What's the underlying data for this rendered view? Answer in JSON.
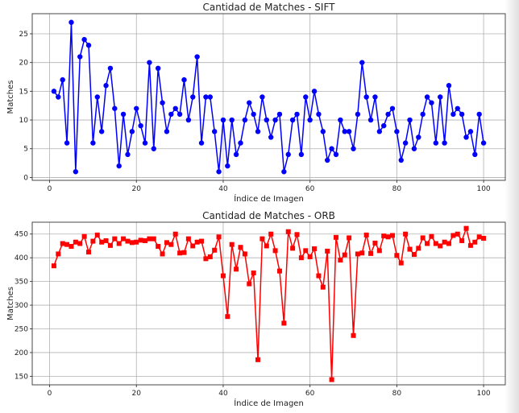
{
  "chart_data": [
    {
      "type": "line",
      "title": "Cantidad de Matches - SIFT",
      "xlabel": "Índice de Imagen",
      "ylabel": "Matches",
      "xlim": [
        -4,
        105
      ],
      "ylim": [
        -0.5,
        28.5
      ],
      "xticks": [
        0,
        20,
        40,
        60,
        80,
        100
      ],
      "yticks": [
        0,
        5,
        10,
        15,
        20,
        25
      ],
      "grid": true,
      "series": [
        {
          "color": "#0000ff",
          "marker": "circle",
          "x": [
            1,
            2,
            3,
            4,
            5,
            6,
            7,
            8,
            9,
            10,
            11,
            12,
            13,
            14,
            15,
            16,
            17,
            18,
            19,
            20,
            21,
            22,
            23,
            24,
            25,
            26,
            27,
            28,
            29,
            30,
            31,
            32,
            33,
            34,
            35,
            36,
            37,
            38,
            39,
            40,
            41,
            42,
            43,
            44,
            45,
            46,
            47,
            48,
            49,
            50,
            51,
            52,
            53,
            54,
            55,
            56,
            57,
            58,
            59,
            60,
            61,
            62,
            63,
            64,
            65,
            66,
            67,
            68,
            69,
            70,
            71,
            72,
            73,
            74,
            75,
            76,
            77,
            78,
            79,
            80,
            81,
            82,
            83,
            84,
            85,
            86,
            87,
            88,
            89,
            90,
            91,
            92,
            93,
            94,
            95,
            96,
            97,
            98,
            99,
            100
          ],
          "values": [
            15,
            14,
            17,
            6,
            27,
            1,
            21,
            24,
            23,
            6,
            14,
            8,
            16,
            19,
            12,
            2,
            11,
            4,
            8,
            12,
            9,
            6,
            20,
            5,
            19,
            13,
            8,
            11,
            12,
            11,
            17,
            10,
            14,
            21,
            6,
            14,
            14,
            8,
            1,
            10,
            2,
            10,
            4,
            6,
            10,
            13,
            11,
            8,
            14,
            10,
            7,
            10,
            11,
            1,
            4,
            10,
            11,
            4,
            14,
            10,
            15,
            11,
            8,
            3,
            5,
            4,
            10,
            8,
            8,
            5,
            11,
            20,
            14,
            10,
            14,
            8,
            9,
            11,
            12,
            8,
            3,
            6,
            10,
            5,
            7,
            11,
            14,
            13,
            6,
            14,
            6,
            16,
            11,
            12,
            11,
            7,
            8,
            4,
            11,
            6
          ]
        }
      ]
    },
    {
      "type": "line",
      "title": "Cantidad de Matches - ORB",
      "xlabel": "Índice de Imagen",
      "ylabel": "Matches",
      "xlim": [
        -4,
        105
      ],
      "ylim": [
        132,
        475
      ],
      "xticks": [
        0,
        20,
        40,
        60,
        80,
        100
      ],
      "yticks": [
        150,
        200,
        250,
        300,
        350,
        400,
        450
      ],
      "grid": true,
      "series": [
        {
          "color": "#ff0000",
          "marker": "square",
          "x": [
            1,
            2,
            3,
            4,
            5,
            6,
            7,
            8,
            9,
            10,
            11,
            12,
            13,
            14,
            15,
            16,
            17,
            18,
            19,
            20,
            21,
            22,
            23,
            24,
            25,
            26,
            27,
            28,
            29,
            30,
            31,
            32,
            33,
            34,
            35,
            36,
            37,
            38,
            39,
            40,
            41,
            42,
            43,
            44,
            45,
            46,
            47,
            48,
            49,
            50,
            51,
            52,
            53,
            54,
            55,
            56,
            57,
            58,
            59,
            60,
            61,
            62,
            63,
            64,
            65,
            66,
            67,
            68,
            69,
            70,
            71,
            72,
            73,
            74,
            75,
            76,
            77,
            78,
            79,
            80,
            81,
            82,
            83,
            84,
            85,
            86,
            87,
            88,
            89,
            90,
            91,
            92,
            93,
            94,
            95,
            96,
            97,
            98,
            99,
            100
          ],
          "values": [
            383,
            408,
            430,
            428,
            424,
            433,
            430,
            445,
            412,
            435,
            448,
            433,
            436,
            426,
            440,
            430,
            440,
            435,
            432,
            433,
            437,
            436,
            440,
            440,
            424,
            408,
            432,
            428,
            450,
            410,
            411,
            440,
            425,
            433,
            435,
            398,
            402,
            416,
            444,
            362,
            276,
            428,
            376,
            422,
            408,
            345,
            368,
            185,
            440,
            425,
            450,
            415,
            372,
            262,
            455,
            420,
            449,
            400,
            415,
            402,
            419,
            362,
            338,
            414,
            143,
            443,
            395,
            406,
            442,
            236,
            408,
            410,
            448,
            409,
            431,
            415,
            446,
            444,
            447,
            405,
            389,
            450,
            418,
            407,
            420,
            442,
            430,
            445,
            430,
            425,
            433,
            430,
            447,
            450,
            436,
            462,
            426,
            433,
            444,
            441
          ]
        }
      ]
    }
  ]
}
